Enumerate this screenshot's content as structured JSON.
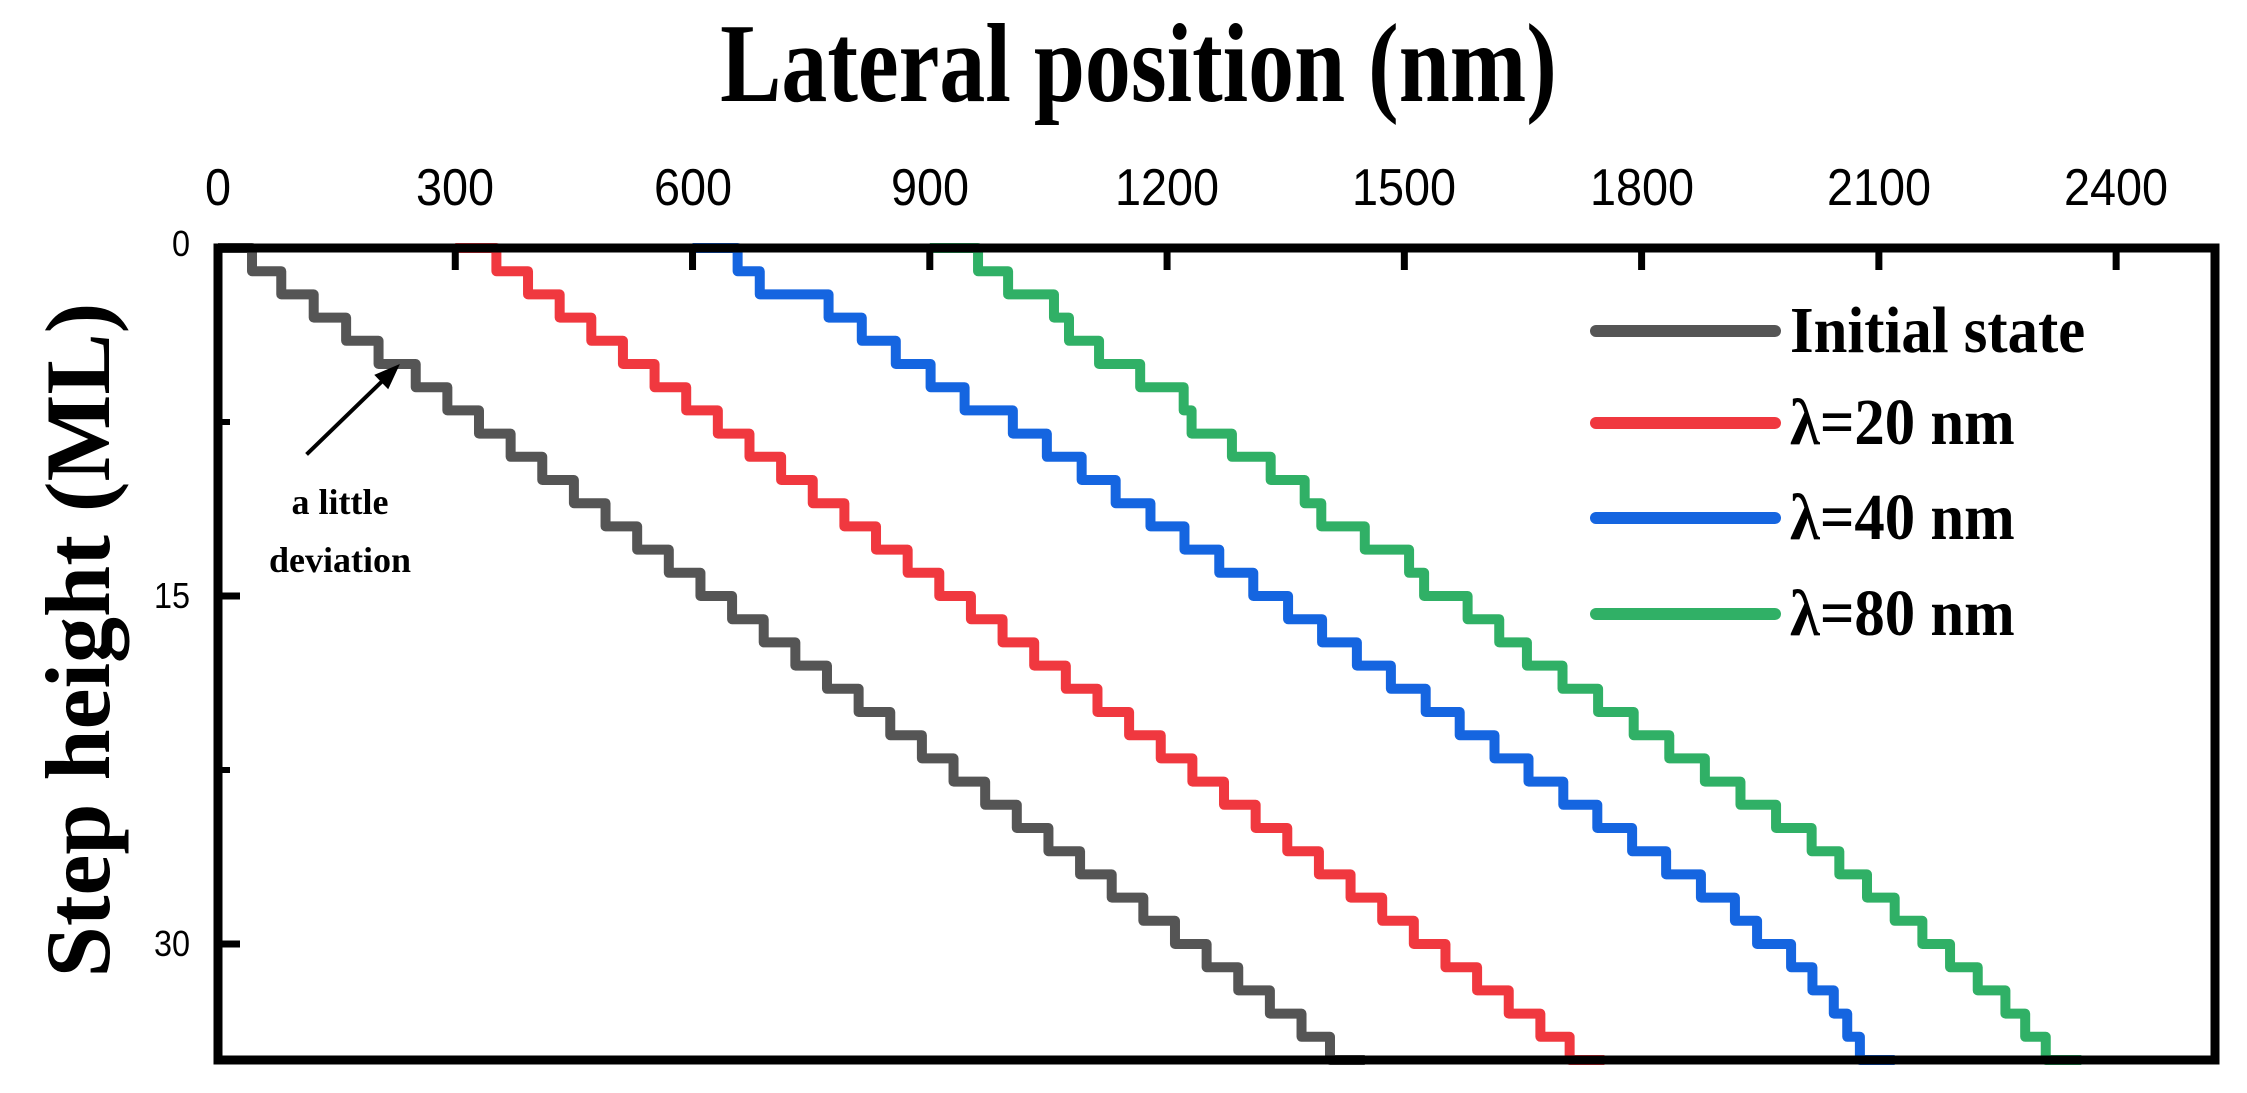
{
  "chart_data": {
    "type": "line",
    "subtype": "step",
    "title": "",
    "xlabel": "Lateral position (nm)",
    "ylabel": "Step height (ML)",
    "xlim": [
      0,
      2525
    ],
    "ylim": [
      35,
      0
    ],
    "y_inverted": true,
    "x_axis_position": "top",
    "xticks": [
      0,
      300,
      600,
      900,
      1200,
      1500,
      1800,
      2100,
      2400
    ],
    "xtick_labels": [
      "0",
      "300",
      "600",
      "900",
      "1200",
      "1500",
      "1800",
      "2100",
      "2400"
    ],
    "yticks_major": [
      0,
      15,
      30
    ],
    "ytick_labels": [
      "0",
      "15",
      "30"
    ],
    "yticks_minor": [
      7.5,
      22.5
    ],
    "grid": false,
    "legend_position": "upper right",
    "series": [
      {
        "name": "Initial state",
        "color": "#555555",
        "start_x": 0,
        "end_x": 1450,
        "riser_x": [
          43,
          80,
          121,
          162,
          203,
          250,
          290,
          330,
          370,
          410,
          450,
          490,
          530,
          570,
          610,
          650,
          690,
          730,
          770,
          810,
          850,
          890,
          930,
          970,
          1010,
          1050,
          1090,
          1130,
          1170,
          1210,
          1250,
          1290,
          1330,
          1370,
          1406
        ]
      },
      {
        "name": "λ=20 nm",
        "color": "#f0383f",
        "start_x": 300,
        "end_x": 1753,
        "riser_x": [
          352,
          392,
          432,
          472,
          512,
          552,
          592,
          632,
          672,
          712,
          752,
          792,
          832,
          872,
          912,
          952,
          992,
          1032,
          1072,
          1112,
          1152,
          1192,
          1232,
          1272,
          1312,
          1352,
          1392,
          1432,
          1472,
          1512,
          1552,
          1592,
          1632,
          1672,
          1709
        ]
      },
      {
        "name": "λ=40 nm",
        "color": "#1565e0",
        "start_x": 600,
        "end_x": 2120,
        "riser_x": [
          657,
          685,
          772,
          814,
          857,
          901,
          944,
          1005,
          1048,
          1092,
          1135,
          1179,
          1222,
          1266,
          1309,
          1353,
          1396,
          1440,
          1483,
          1527,
          1570,
          1614,
          1657,
          1701,
          1744,
          1788,
          1831,
          1875,
          1918,
          1946,
          1989,
          2016,
          2043,
          2060,
          2076
        ]
      },
      {
        "name": "λ=80 nm",
        "color": "#30b066",
        "start_x": 900,
        "end_x": 2356,
        "riser_x": [
          961,
          999,
          1057,
          1076,
          1114,
          1166,
          1221,
          1231,
          1282,
          1331,
          1374,
          1395,
          1450,
          1506,
          1525,
          1580,
          1620,
          1655,
          1700,
          1745,
          1790,
          1835,
          1880,
          1925,
          1970,
          2015,
          2050,
          2085,
          2120,
          2155,
          2190,
          2225,
          2260,
          2285,
          2311
        ]
      }
    ],
    "annotations": [
      {
        "text": "a little deviation",
        "arrow_to": [
          230,
          5
        ],
        "arrow_from": [
          112,
          8.9
        ]
      }
    ]
  },
  "axes": {
    "x_title": "Lateral position (nm)",
    "y_title": "Step height (ML)"
  },
  "legend": {
    "items": [
      {
        "label": "Initial state",
        "color": "#555555"
      },
      {
        "label": "λ=20 nm",
        "color": "#f0383f"
      },
      {
        "label": "λ=40 nm",
        "color": "#1565e0"
      },
      {
        "label": "λ=80 nm",
        "color": "#30b066"
      }
    ]
  },
  "annotation": {
    "line1": "a little",
    "line2": "deviation"
  }
}
